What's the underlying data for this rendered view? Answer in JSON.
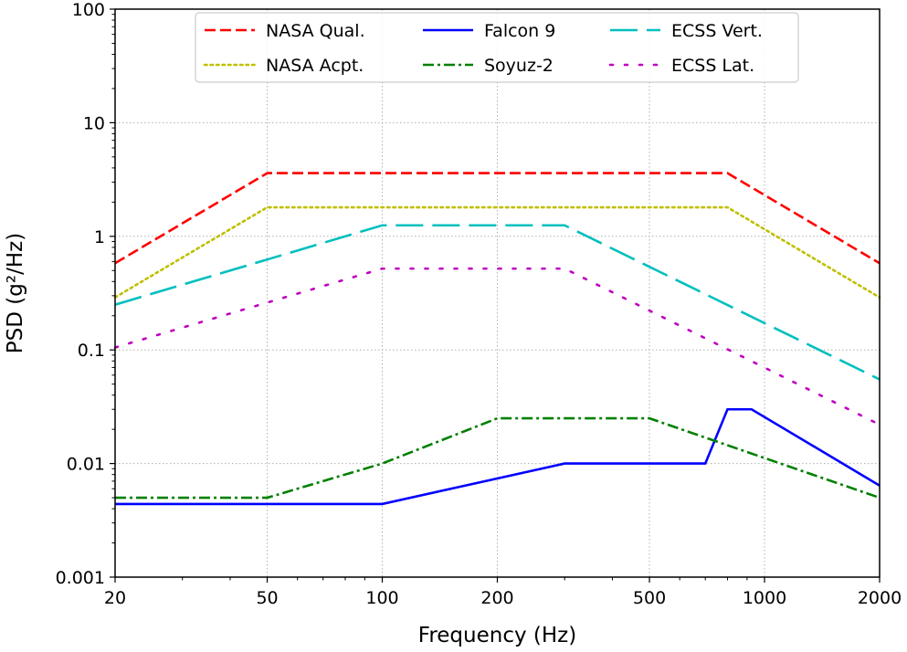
{
  "chart_data": {
    "type": "line",
    "title": "",
    "xlabel": "Frequency (Hz)",
    "ylabel": "PSD (g²/Hz)",
    "x_scale": "log",
    "y_scale": "log",
    "xlim": [
      20,
      2000
    ],
    "ylim": [
      0.001,
      100
    ],
    "grid": true,
    "legend_position": "top-center",
    "legend_columns": 3,
    "x_ticks": [
      {
        "value": 20,
        "label": "20"
      },
      {
        "value": 50,
        "label": "50"
      },
      {
        "value": 100,
        "label": "100"
      },
      {
        "value": 200,
        "label": "200"
      },
      {
        "value": 500,
        "label": "500"
      },
      {
        "value": 1000,
        "label": "1000"
      },
      {
        "value": 2000,
        "label": "2000"
      }
    ],
    "y_ticks": [
      {
        "value": 0.001,
        "label": "0.001"
      },
      {
        "value": 0.01,
        "label": "0.01"
      },
      {
        "value": 0.1,
        "label": "0.1"
      },
      {
        "value": 1,
        "label": "1"
      },
      {
        "value": 10,
        "label": "10"
      },
      {
        "value": 100,
        "label": "100"
      }
    ],
    "series": [
      {
        "name": "NASA Qual.",
        "color": "#ff0000",
        "style": "dashed",
        "x": [
          20,
          50,
          800,
          2000
        ],
        "y": [
          0.58,
          3.6,
          3.6,
          0.58
        ]
      },
      {
        "name": "NASA Acpt.",
        "color": "#bfbf00",
        "style": "dotted",
        "x": [
          20,
          50,
          800,
          2000
        ],
        "y": [
          0.29,
          1.8,
          1.8,
          0.29
        ]
      },
      {
        "name": "ECSS Vert.",
        "color": "#00bfbf",
        "style": "longdash",
        "x": [
          20,
          100,
          300,
          2000
        ],
        "y": [
          0.25,
          1.25,
          1.25,
          0.055
        ]
      },
      {
        "name": "ECSS Lat.",
        "color": "#bf00bf",
        "style": "loosedot",
        "x": [
          20,
          100,
          300,
          2000
        ],
        "y": [
          0.105,
          0.52,
          0.52,
          0.022
        ]
      },
      {
        "name": "Falcon 9",
        "color": "#0000ff",
        "style": "solid",
        "x": [
          20,
          100,
          300,
          700,
          800,
          925,
          2000
        ],
        "y": [
          0.0044,
          0.0044,
          0.01,
          0.01,
          0.03,
          0.03,
          0.0064
        ]
      },
      {
        "name": "Soyuz-2",
        "color": "#008000",
        "style": "dashdot",
        "x": [
          20,
          50,
          100,
          200,
          500,
          2000
        ],
        "y": [
          0.005,
          0.005,
          0.01,
          0.025,
          0.025,
          0.005
        ]
      }
    ],
    "legend_order": [
      "NASA Qual.",
      "Falcon 9",
      "ECSS Vert.",
      "NASA Acpt.",
      "Soyuz-2",
      "ECSS Lat."
    ]
  }
}
